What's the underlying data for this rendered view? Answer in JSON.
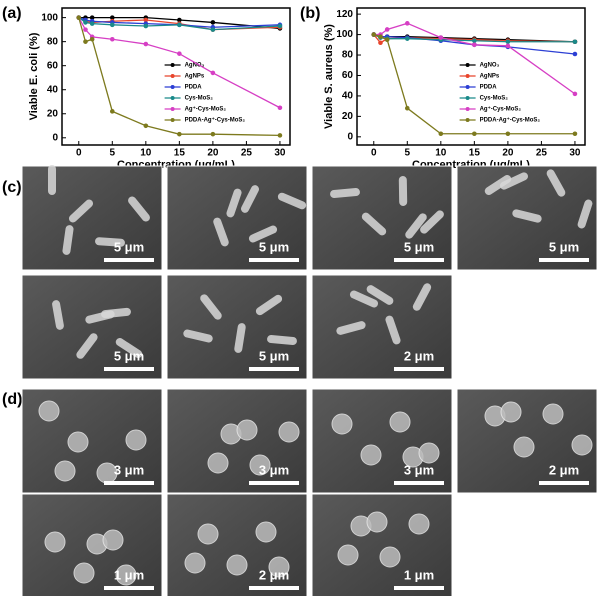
{
  "panels": [
    "(a)",
    "(b)",
    "(c)",
    "(d)"
  ],
  "chart_data": [
    {
      "type": "line",
      "ylabel": "Viable E. coli (%)",
      "xlabel": "Concentration (μg/mL)",
      "x": [
        0,
        1,
        2,
        5,
        10,
        15,
        20,
        30
      ],
      "xlim": [
        -2.5,
        31.5
      ],
      "xticks": [
        0,
        5,
        10,
        15,
        20,
        25,
        30
      ],
      "ylim": [
        -6,
        108
      ],
      "yticks": [
        0,
        20,
        40,
        60,
        80,
        100
      ],
      "legend": "right",
      "series": [
        {
          "name": "AgNO₃",
          "color": "#000000",
          "values": [
            100,
            100,
            100,
            100,
            100,
            98,
            96,
            91
          ]
        },
        {
          "name": "AgNPs",
          "color": "#e8452c",
          "values": [
            100,
            97,
            96,
            97,
            98,
            95,
            90,
            92
          ]
        },
        {
          "name": "PDDA",
          "color": "#2c3fd4",
          "values": [
            100,
            98,
            97,
            96,
            95,
            94,
            92,
            94
          ]
        },
        {
          "name": "Cys-MoS₂",
          "color": "#1a8a8a",
          "values": [
            100,
            96,
            95,
            94,
            93,
            94,
            90,
            93
          ]
        },
        {
          "name": "Ag⁺-Cys-MoS₂",
          "color": "#d63fc4",
          "values": [
            100,
            90,
            84,
            82,
            78,
            70,
            54,
            25
          ]
        },
        {
          "name": "PDDA-Ag⁺-Cys-MoS₂",
          "color": "#7d7a1e",
          "values": [
            100,
            80,
            82,
            22,
            10,
            3,
            3,
            2
          ]
        }
      ]
    },
    {
      "type": "line",
      "ylabel": "Viable S. aureus (%)",
      "xlabel": "Concentration (μg/mL)",
      "x": [
        0,
        1,
        2,
        5,
        10,
        15,
        20,
        30
      ],
      "xlim": [
        -2.5,
        31.5
      ],
      "xticks": [
        0,
        5,
        10,
        15,
        20,
        25,
        30
      ],
      "ylim": [
        -8,
        126
      ],
      "yticks": [
        0,
        20,
        40,
        60,
        80,
        100,
        120
      ],
      "legend": "right",
      "series": [
        {
          "name": "AgNO₃",
          "color": "#000000",
          "values": [
            100,
            98,
            98,
            98,
            97,
            96,
            95,
            93
          ]
        },
        {
          "name": "AgNPs",
          "color": "#e8452c",
          "values": [
            100,
            92,
            96,
            97,
            96,
            95,
            94,
            93
          ]
        },
        {
          "name": "PDDA",
          "color": "#2c3fd4",
          "values": [
            100,
            98,
            98,
            97,
            94,
            90,
            88,
            81
          ]
        },
        {
          "name": "Cys-MoS₂",
          "color": "#1a8a8a",
          "values": [
            100,
            97,
            96,
            96,
            95,
            94,
            93,
            93
          ]
        },
        {
          "name": "Ag⁺-Cys-MoS₂",
          "color": "#d63fc4",
          "values": [
            100,
            100,
            105,
            111,
            97,
            90,
            89,
            42
          ]
        },
        {
          "name": "PDDA-Ag⁺-Cys-MoS₂",
          "color": "#7d7a1e",
          "values": [
            100,
            98,
            95,
            28,
            3,
            3,
            3,
            3
          ]
        }
      ]
    }
  ],
  "micrographs_c": [
    "5 μm",
    "5 μm",
    "5 μm",
    "5 μm",
    "5 μm",
    "5 μm",
    "2 μm"
  ],
  "micrographs_d": [
    "3 μm",
    "3 μm",
    "3 μm",
    "2 μm",
    "1 μm",
    "2 μm",
    "1 μm"
  ]
}
